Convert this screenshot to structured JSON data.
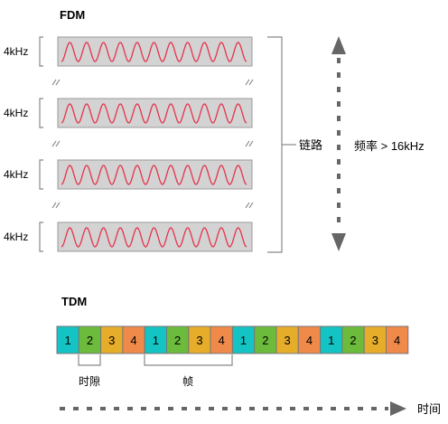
{
  "fdm": {
    "title": "FDM",
    "channels": [
      {
        "label": "4kHz"
      },
      {
        "label": "4kHz"
      },
      {
        "label": "4kHz"
      },
      {
        "label": "4kHz"
      }
    ],
    "link_label": "链路",
    "freq_label": "频率 > 16kHz"
  },
  "tdm": {
    "title": "TDM",
    "slots": [
      "1",
      "2",
      "3",
      "4",
      "1",
      "2",
      "3",
      "4",
      "1",
      "2",
      "3",
      "4",
      "1",
      "2",
      "3",
      "4"
    ],
    "slot_colors": {
      "1": "#14c3c3",
      "2": "#6cbb3c",
      "3": "#e6ad2a",
      "4": "#f08a4b"
    },
    "timeslot_label": "时隙",
    "frame_label": "帧",
    "time_label": "时间"
  },
  "colors": {
    "channel_fill": "#d3d3d3",
    "wave": "#e6324b",
    "arrow": "#666666",
    "bracket": "#888888"
  }
}
